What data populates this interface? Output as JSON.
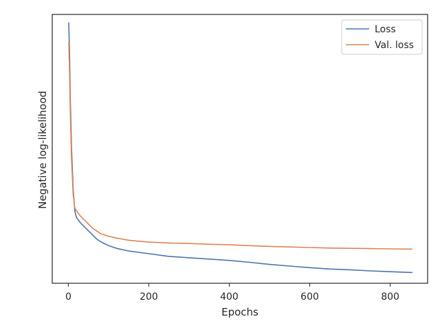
{
  "chart_data": {
    "type": "line",
    "title": "",
    "xlabel": "Epochs",
    "ylabel": "Negative log-likelihood",
    "xlim": [
      -40,
      893
    ],
    "ylim": [
      0.0,
      1.0
    ],
    "x_ticks": [
      0,
      200,
      400,
      600,
      800
    ],
    "y_ticks_shown": false,
    "grid": false,
    "legend": "top-right",
    "series": [
      {
        "name": "Loss",
        "color": "#4c72b0",
        "x": [
          1,
          3,
          5,
          8,
          12,
          16,
          20,
          25,
          30,
          40,
          50,
          60,
          70,
          80,
          90,
          100,
          120,
          150,
          200,
          250,
          300,
          350,
          400,
          450,
          500,
          550,
          600,
          650,
          700,
          750,
          800,
          855
        ],
        "y": [
          0.97,
          0.85,
          0.68,
          0.5,
          0.35,
          0.27,
          0.245,
          0.235,
          0.225,
          0.21,
          0.195,
          0.18,
          0.165,
          0.155,
          0.147,
          0.14,
          0.13,
          0.12,
          0.11,
          0.1,
          0.095,
          0.09,
          0.085,
          0.078,
          0.07,
          0.064,
          0.058,
          0.053,
          0.05,
          0.046,
          0.043,
          0.04
        ]
      },
      {
        "name": "Val. loss",
        "color": "#dd8452",
        "x": [
          1,
          3,
          5,
          8,
          12,
          16,
          20,
          25,
          30,
          40,
          50,
          60,
          70,
          80,
          90,
          100,
          120,
          150,
          200,
          250,
          300,
          350,
          400,
          450,
          500,
          550,
          600,
          650,
          700,
          750,
          800,
          855
        ],
        "y": [
          0.9,
          0.78,
          0.63,
          0.46,
          0.33,
          0.28,
          0.27,
          0.26,
          0.25,
          0.235,
          0.22,
          0.205,
          0.195,
          0.185,
          0.18,
          0.175,
          0.168,
          0.16,
          0.153,
          0.15,
          0.148,
          0.145,
          0.143,
          0.14,
          0.137,
          0.135,
          0.133,
          0.131,
          0.13,
          0.129,
          0.128,
          0.127
        ]
      }
    ]
  }
}
